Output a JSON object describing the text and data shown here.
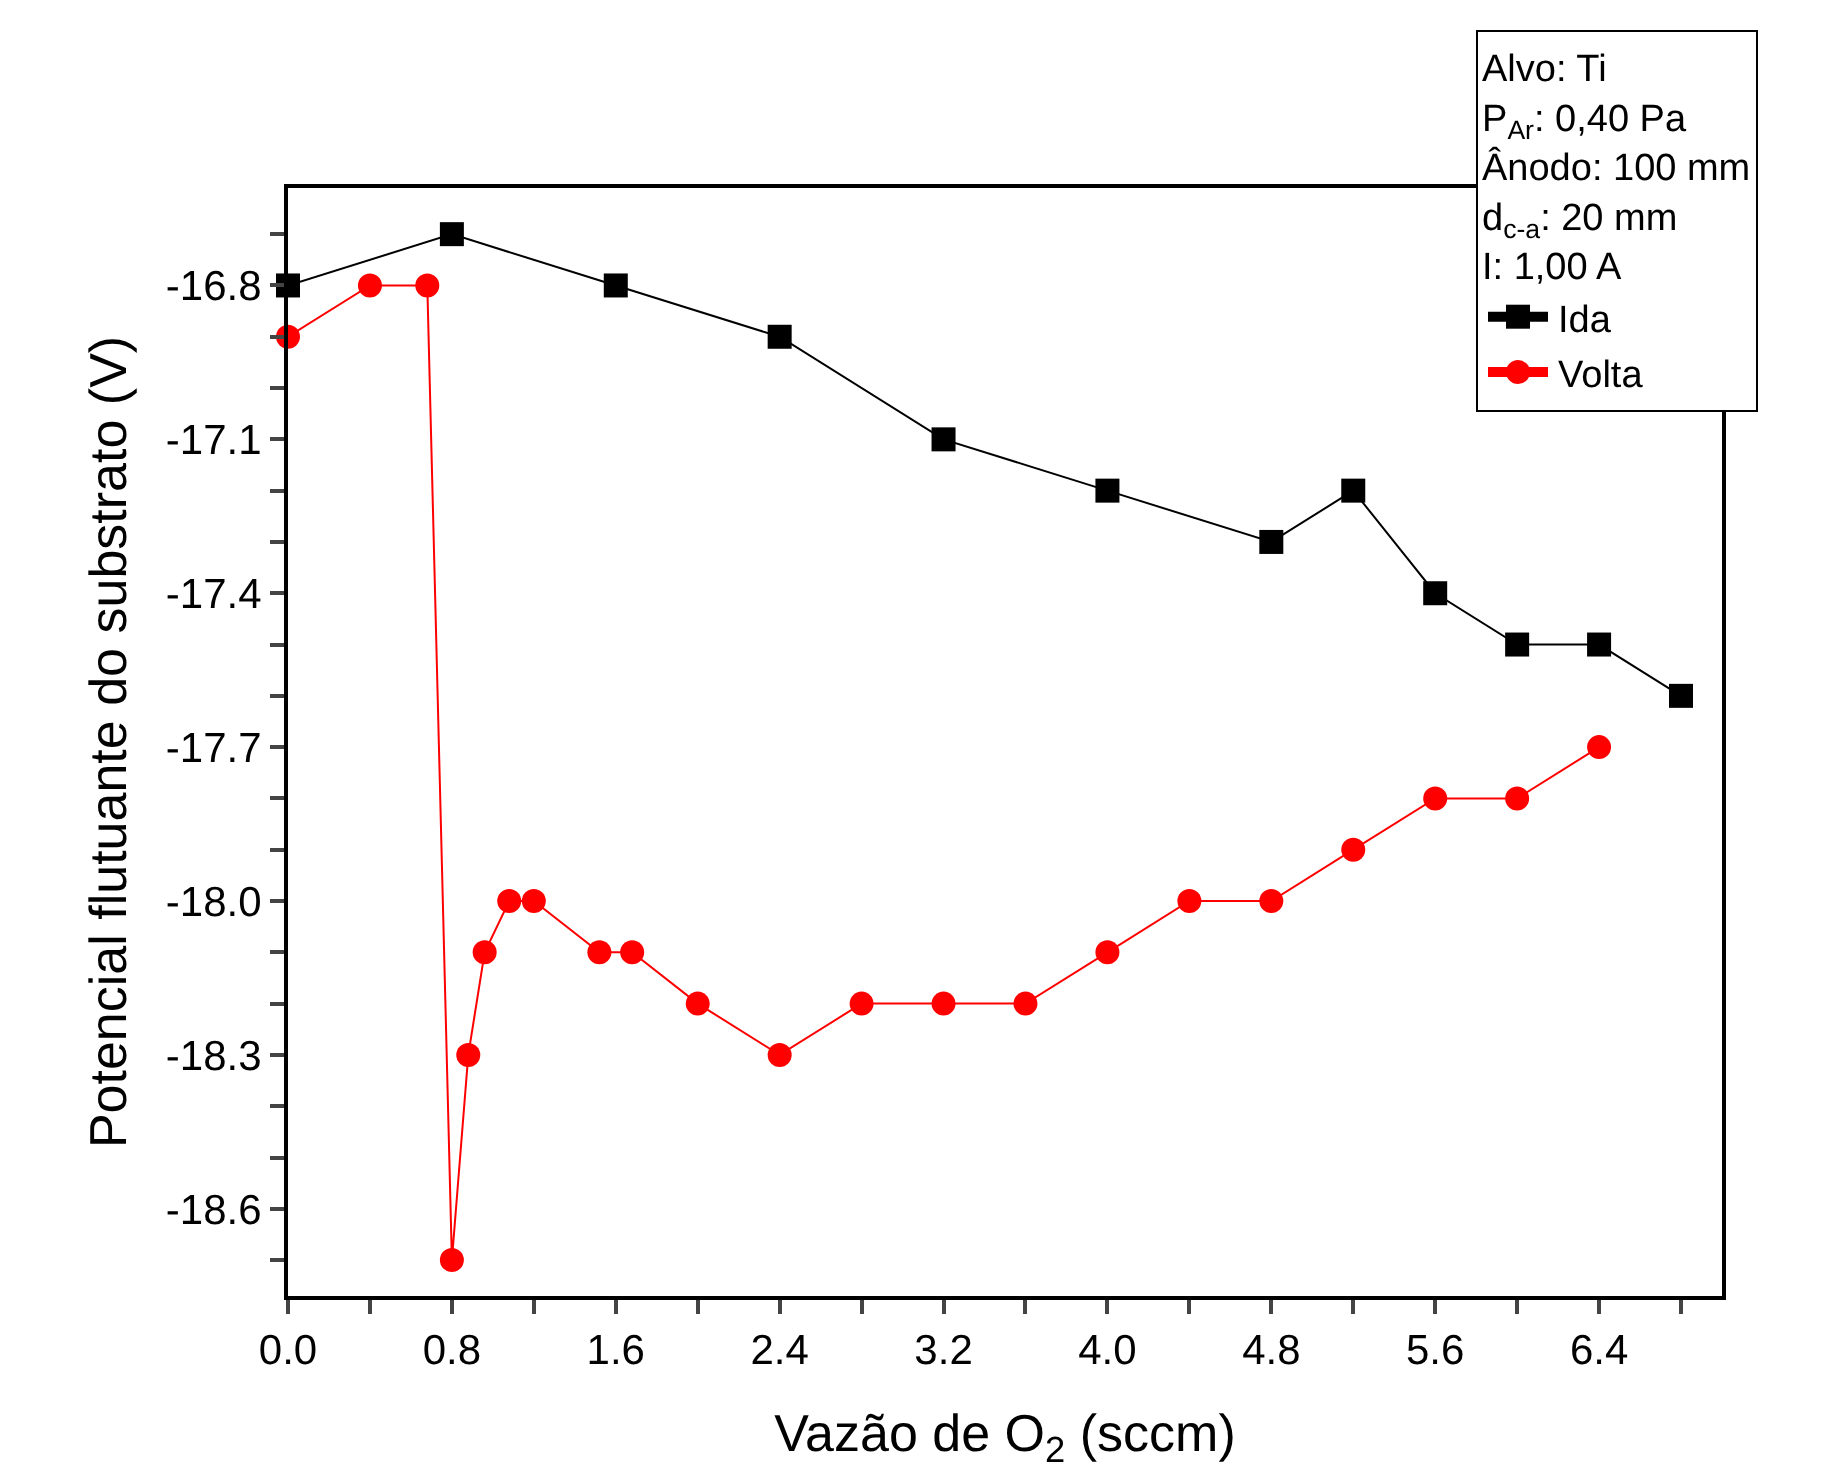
{
  "chart_data": {
    "type": "line",
    "xlabel": "Vazão de O$_{2}$ (sccm)",
    "ylabel": "Potencial flutuante do substrato (V)",
    "annotations": [
      "Alvo: Ti",
      "P$_{Ar}$: 0,40 Pa",
      "Ânodo: 100 mm",
      "d$_{c-a}$: 20 mm",
      "I: 1,00 A"
    ],
    "series": [
      {
        "name": "Ida",
        "color": "#000000",
        "marker": "square",
        "x": [
          0,
          0.8,
          1.6,
          2.4,
          3.2,
          4.0,
          4.8,
          5.2,
          5.6,
          6.0,
          6.4,
          6.8
        ],
        "values": [
          -16.8,
          -16.7,
          -16.8,
          -16.9,
          -17.1,
          -17.2,
          -17.3,
          -17.2,
          -17.4,
          -17.5,
          -17.5,
          -17.6
        ]
      },
      {
        "name": "Volta",
        "color": "#ff0000",
        "marker": "circle",
        "x": [
          0,
          0.4,
          0.68,
          0.8,
          0.88,
          0.96,
          1.08,
          1.2,
          1.52,
          1.68,
          2.0,
          2.4,
          2.8,
          3.2,
          3.6,
          4.0,
          4.4,
          4.8,
          5.2,
          5.6,
          6.0,
          6.4
        ],
        "values": [
          -16.9,
          -16.8,
          -16.8,
          -18.7,
          -18.3,
          -18.1,
          -18.0,
          -18.0,
          -18.1,
          -18.1,
          -18.2,
          -18.3,
          -18.2,
          -18.2,
          -18.2,
          -18.1,
          -18.0,
          -18.0,
          -17.9,
          -17.8,
          -17.8,
          -17.7
        ]
      }
    ],
    "xlim": [
      0,
      7.0
    ],
    "ylim": [
      -18.77,
      -16.61
    ],
    "xticks": [
      {
        "value": 0,
        "label": "0.0"
      },
      {
        "value": 0.4,
        "label": null
      },
      {
        "value": 0.8,
        "label": "0.8"
      },
      {
        "value": 1.2,
        "label": null
      },
      {
        "value": 1.6,
        "label": "1.6"
      },
      {
        "value": 2.0,
        "label": null
      },
      {
        "value": 2.4,
        "label": "2.4"
      },
      {
        "value": 2.8,
        "label": null
      },
      {
        "value": 3.2,
        "label": "3.2"
      },
      {
        "value": 3.6,
        "label": null
      },
      {
        "value": 4.0,
        "label": "4.0"
      },
      {
        "value": 4.4,
        "label": null
      },
      {
        "value": 4.8,
        "label": "4.8"
      },
      {
        "value": 5.2,
        "label": null
      },
      {
        "value": 5.6,
        "label": "5.6"
      },
      {
        "value": 6.0,
        "label": null
      },
      {
        "value": 6.4,
        "label": "6.4"
      },
      {
        "value": 6.8,
        "label": null
      }
    ],
    "yticks": [
      {
        "value": -16.7,
        "label": null
      },
      -16.8,
      {
        "value": -16.9,
        "label": null
      },
      {
        "value": -17.0,
        "label": null
      },
      -17.1,
      {
        "value": -17.2,
        "label": null
      },
      {
        "value": -17.3,
        "label": null
      },
      -17.4,
      {
        "value": -17.5,
        "label": null
      },
      {
        "value": -17.6,
        "label": null
      },
      -17.7,
      {
        "value": -17.8,
        "label": null
      },
      {
        "value": -17.9,
        "label": null
      },
      {
        "value": -18.0,
        "label": "-18.0"
      },
      {
        "value": -18.1,
        "label": null
      },
      {
        "value": -18.2,
        "label": null
      },
      -18.3,
      {
        "value": -18.4,
        "label": null
      },
      {
        "value": -18.5,
        "label": null
      },
      -18.6,
      {
        "value": -18.7,
        "label": null
      }
    ],
    "legend": "top right",
    "line_style": "solid"
  }
}
